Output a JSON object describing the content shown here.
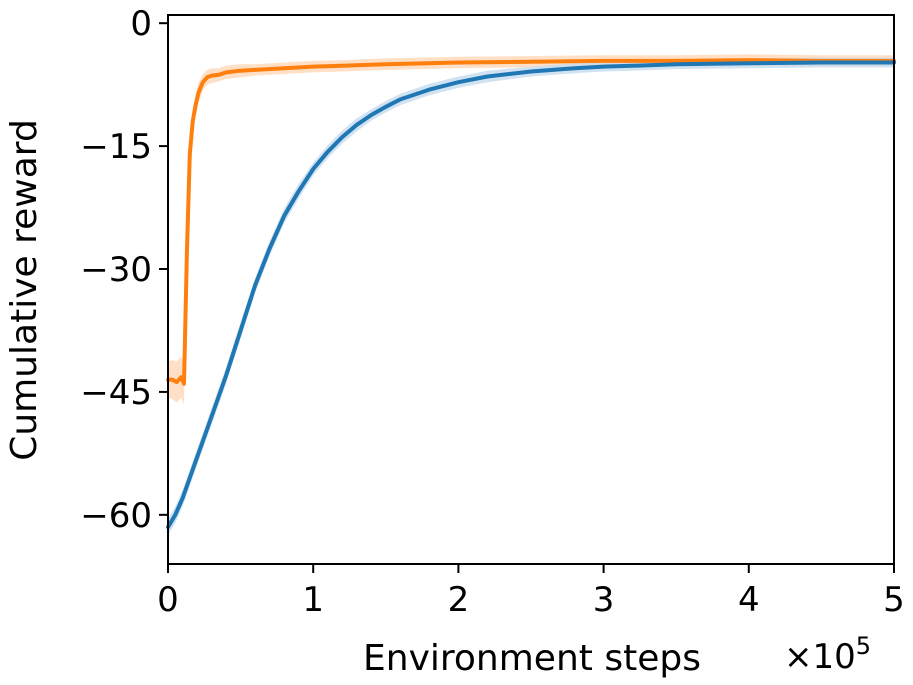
{
  "chart_data": {
    "type": "line",
    "title": "",
    "xlabel": "Environment steps",
    "ylabel": "Cumulative reward",
    "x_scale_label": "×10",
    "x_scale_exponent": "5",
    "xlim": [
      0,
      5
    ],
    "ylim": [
      -66,
      1
    ],
    "xticks": [
      0,
      1,
      2,
      3,
      4,
      5
    ],
    "xtick_labels": [
      "0",
      "1",
      "2",
      "3",
      "4",
      "5"
    ],
    "yticks": [
      0,
      -15,
      -30,
      -45,
      -60
    ],
    "ytick_labels": [
      "0",
      "−15",
      "−30",
      "−45",
      "−60"
    ],
    "grid": false,
    "legend": "none",
    "series": [
      {
        "color": "#ff7f0e",
        "band_color": "#ffd8b8",
        "x": [
          0,
          0.03,
          0.06,
          0.09,
          0.11,
          0.13,
          0.15,
          0.17,
          0.19,
          0.21,
          0.24,
          0.27,
          0.3,
          0.35,
          0.4,
          0.5,
          0.6,
          0.8,
          1.0,
          1.2,
          1.5,
          2.0,
          2.5,
          3.0,
          3.5,
          4.0,
          4.5,
          5.0
        ],
        "y": [
          -43.5,
          -43.5,
          -43.8,
          -43.2,
          -44.0,
          -28.0,
          -16.0,
          -12.0,
          -10.0,
          -8.5,
          -7.2,
          -6.6,
          -6.4,
          -6.3,
          -6.0,
          -5.8,
          -5.7,
          -5.5,
          -5.3,
          -5.2,
          -5.0,
          -4.8,
          -4.7,
          -4.6,
          -4.6,
          -4.5,
          -4.6,
          -4.6
        ],
        "band": [
          2.2,
          2.4,
          2.5,
          2.5,
          2.5,
          2.0,
          1.8,
          1.5,
          1.3,
          1.2,
          1.0,
          0.9,
          0.9,
          0.8,
          0.8,
          0.8,
          0.7,
          0.7,
          0.7,
          0.7,
          0.7,
          0.7,
          0.7,
          0.7,
          0.7,
          0.7,
          0.7,
          0.7
        ]
      },
      {
        "color": "#1f77b4",
        "band_color": "#c6dbef",
        "x": [
          0,
          0.05,
          0.1,
          0.2,
          0.3,
          0.4,
          0.5,
          0.6,
          0.7,
          0.8,
          0.9,
          1.0,
          1.1,
          1.2,
          1.3,
          1.4,
          1.5,
          1.6,
          1.8,
          2.0,
          2.2,
          2.5,
          2.8,
          3.0,
          3.2,
          3.5,
          4.0,
          4.5,
          5.0
        ],
        "y": [
          -61.5,
          -60.0,
          -58.0,
          -53.0,
          -48.0,
          -43.0,
          -37.5,
          -32.0,
          -27.5,
          -23.5,
          -20.5,
          -17.8,
          -15.7,
          -13.9,
          -12.4,
          -11.2,
          -10.2,
          -9.3,
          -8.1,
          -7.2,
          -6.5,
          -5.9,
          -5.5,
          -5.3,
          -5.2,
          -5.0,
          -4.9,
          -4.8,
          -4.8
        ],
        "band": [
          1.0,
          1.0,
          1.0,
          1.0,
          1.0,
          1.0,
          1.0,
          0.9,
          0.9,
          0.9,
          0.9,
          0.8,
          0.8,
          0.8,
          0.8,
          0.7,
          0.7,
          0.7,
          0.7,
          0.7,
          0.7,
          0.6,
          0.6,
          0.6,
          0.6,
          0.6,
          0.6,
          0.6,
          0.6
        ]
      }
    ]
  }
}
